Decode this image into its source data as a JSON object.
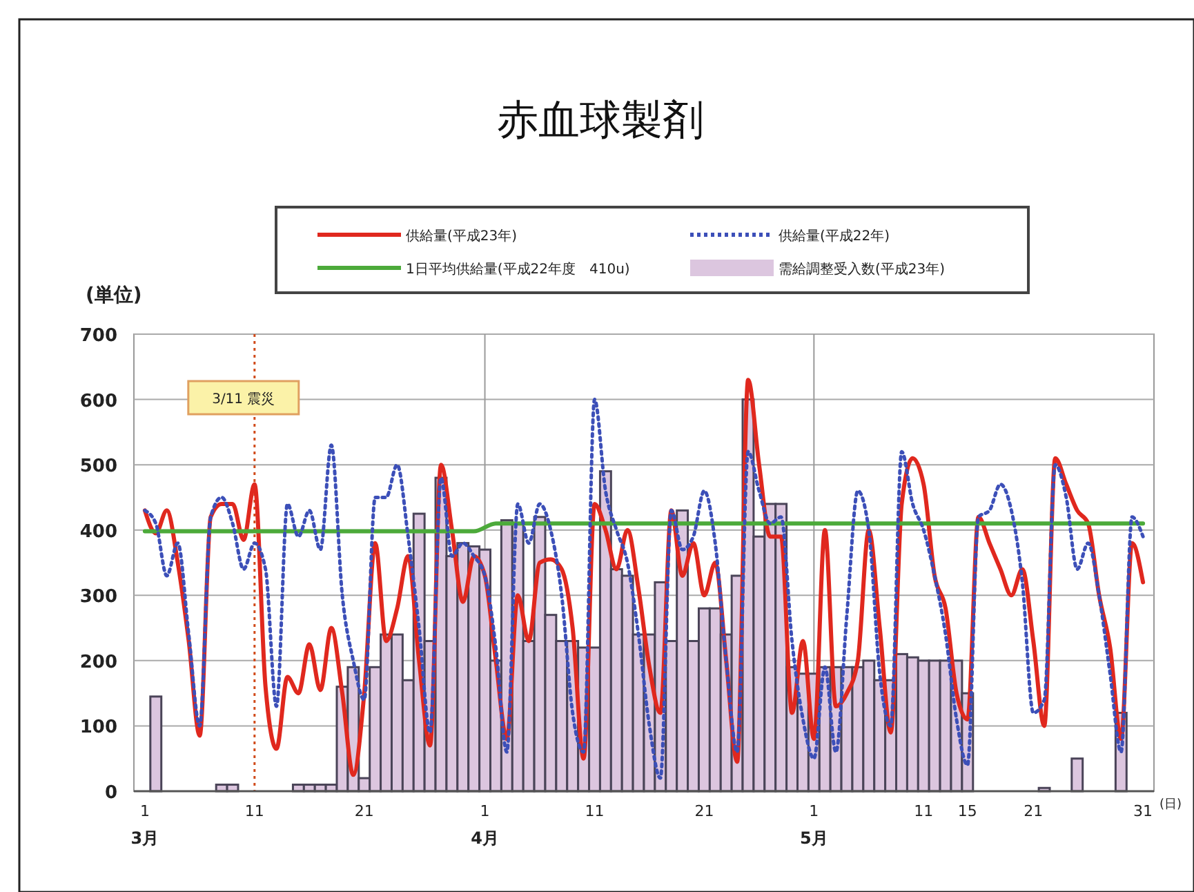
{
  "chart_data": {
    "type": "line",
    "title": "赤血球製剤",
    "ylabel": "(単位)",
    "xlabel": "(日)",
    "xlim": [
      "--02-28",
      "--06-01"
    ],
    "ylim": [
      0,
      700
    ],
    "yticks": [
      0,
      100,
      200,
      300,
      400,
      500,
      600,
      700
    ],
    "xticks": [
      {
        "value": "--03-01",
        "label": "1\n3月"
      },
      {
        "value": "--03-11",
        "label": "11"
      },
      {
        "value": "--03-21",
        "label": "21"
      },
      {
        "value": "--04-01",
        "label": "1\n4月"
      },
      {
        "value": "--04-11",
        "label": "11"
      },
      {
        "value": "--04-21",
        "label": "21"
      },
      {
        "value": "--05-01",
        "label": "1\n5月"
      },
      {
        "value": "--05-11",
        "label": "11"
      },
      {
        "value": "--05-15",
        "label": "15"
      },
      {
        "value": "--05-21",
        "label": "21"
      },
      {
        "value": "--05-31",
        "label": "31"
      }
    ],
    "grid": "y",
    "legend": "top",
    "x": [
      "--03-01",
      "--03-02",
      "--03-03",
      "--03-04",
      "--03-05",
      "--03-06",
      "--03-07",
      "--03-08",
      "--03-09",
      "--03-10",
      "--03-11",
      "--03-12",
      "--03-13",
      "--03-14",
      "--03-15",
      "--03-16",
      "--03-17",
      "--03-18",
      "--03-19",
      "--03-20",
      "--03-21",
      "--03-22",
      "--03-23",
      "--03-24",
      "--03-25",
      "--03-26",
      "--03-27",
      "--03-28",
      "--03-29",
      "--03-30",
      "--03-31",
      "--04-01",
      "--04-02",
      "--04-03",
      "--04-04",
      "--04-05",
      "--04-06",
      "--04-07",
      "--04-08",
      "--04-09",
      "--04-10",
      "--04-11",
      "--04-12",
      "--04-13",
      "--04-14",
      "--04-15",
      "--04-16",
      "--04-17",
      "--04-18",
      "--04-19",
      "--04-20",
      "--04-21",
      "--04-22",
      "--04-23",
      "--04-24",
      "--04-25",
      "--04-26",
      "--04-27",
      "--04-28",
      "--04-29",
      "--04-30",
      "--05-01",
      "--05-02",
      "--05-03",
      "--05-04",
      "--05-05",
      "--05-06",
      "--05-07",
      "--05-08",
      "--05-09",
      "--05-10",
      "--05-11",
      "--05-12",
      "--05-13",
      "--05-14",
      "--05-15",
      "--05-16",
      "--05-17",
      "--05-18",
      "--05-19",
      "--05-20",
      "--05-21",
      "--05-22",
      "--05-23",
      "--05-24",
      "--05-25",
      "--05-26",
      "--05-27",
      "--05-28",
      "--05-29",
      "--05-30",
      "--05-31"
    ],
    "ref_lines": [
      {
        "axis": "x",
        "value": "--03-11",
        "label": "3/11  震災",
        "color": "#d04a1a",
        "line_style": "dotted"
      },
      {
        "axis": "x",
        "value": "--04-01",
        "color": "#9a9a9a"
      },
      {
        "axis": "x",
        "value": "--05-01",
        "color": "#9a9a9a"
      }
    ],
    "series": [
      {
        "name": "供給量(平成23年)",
        "color": "#e0281e",
        "line_style": "solid",
        "values": [
          430,
          395,
          430,
          350,
          230,
          85,
          420,
          440,
          440,
          385,
          470,
          160,
          65,
          175,
          150,
          225,
          155,
          250,
          150,
          25,
          150,
          380,
          230,
          280,
          360,
          200,
          70,
          500,
          400,
          290,
          360,
          330,
          200,
          80,
          300,
          230,
          350,
          355,
          340,
          250,
          50,
          440,
          400,
          340,
          400,
          310,
          190,
          120,
          430,
          330,
          380,
          300,
          350,
          200,
          45,
          630,
          500,
          390,
          390,
          120,
          230,
          80,
          400,
          130,
          150,
          200,
          400,
          250,
          90,
          440,
          510,
          470,
          330,
          280,
          150,
          110,
          420,
          380,
          340,
          300,
          340,
          230,
          100,
          510,
          470,
          430,
          410,
          300,
          220,
          80,
          380,
          320
        ]
      },
      {
        "name": "1日平均供給量(平成22年度　410u)",
        "color": "#4caa3a",
        "line_style": "solid",
        "x": [
          "--03-01",
          "--03-31",
          "--04-02",
          "--05-31"
        ],
        "values": [
          398,
          398,
          410,
          410
        ]
      },
      {
        "name": "供給量(平成22年)",
        "color": "#3c4fb8",
        "line_style": "dotted",
        "values": [
          430,
          410,
          330,
          380,
          240,
          100,
          420,
          450,
          410,
          340,
          380,
          340,
          130,
          440,
          390,
          430,
          370,
          530,
          300,
          200,
          140,
          450,
          450,
          500,
          390,
          250,
          90,
          480,
          360,
          380,
          360,
          330,
          220,
          60,
          440,
          380,
          440,
          400,
          300,
          120,
          60,
          600,
          460,
          400,
          350,
          240,
          100,
          20,
          430,
          370,
          390,
          460,
          380,
          200,
          60,
          520,
          460,
          410,
          420,
          230,
          110,
          50,
          190,
          60,
          270,
          460,
          400,
          180,
          100,
          520,
          440,
          400,
          330,
          240,
          110,
          40,
          420,
          430,
          470,
          430,
          320,
          120,
          140,
          500,
          450,
          340,
          380,
          300,
          180,
          60,
          420,
          390
        ]
      },
      {
        "type": "bar",
        "name": "需給調整受入数(平成23年)",
        "color": "#dcc6df",
        "values": [
          0,
          145,
          0,
          0,
          0,
          0,
          0,
          10,
          10,
          0,
          0,
          0,
          0,
          0,
          10,
          10,
          10,
          10,
          160,
          190,
          20,
          190,
          240,
          240,
          170,
          425,
          230,
          480,
          360,
          380,
          375,
          370,
          200,
          415,
          410,
          230,
          420,
          270,
          230,
          230,
          220,
          220,
          490,
          340,
          330,
          240,
          240,
          320,
          230,
          430,
          230,
          280,
          280,
          240,
          330,
          600,
          390,
          440,
          440,
          190,
          180,
          180,
          190,
          190,
          190,
          190,
          200,
          170,
          170,
          210,
          205,
          200,
          200,
          200,
          200,
          150,
          0,
          0,
          0,
          0,
          0,
          0,
          5,
          0,
          0,
          50,
          0,
          0,
          0,
          120,
          0,
          0
        ]
      }
    ]
  }
}
